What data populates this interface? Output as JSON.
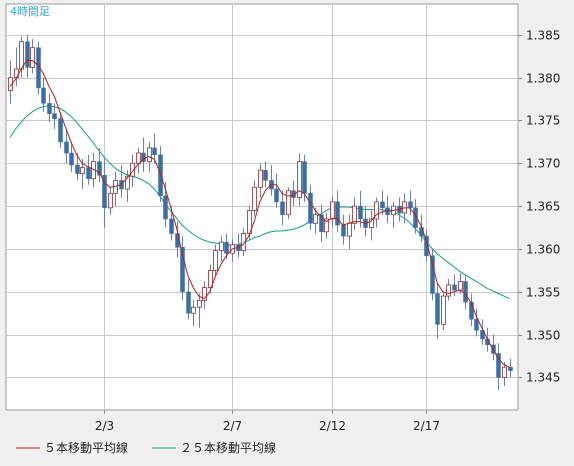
{
  "chart_data": {
    "type": "candlestick",
    "timeframe_label": "4時間足",
    "y_ticks": [
      1.385,
      1.38,
      1.375,
      1.37,
      1.365,
      1.36,
      1.355,
      1.35,
      1.345
    ],
    "y_tick_labels": [
      "1.385",
      "1.380",
      "1.375",
      "1.370",
      "1.365",
      "1.360",
      "1.355",
      "1.350",
      "1.345"
    ],
    "ylim": [
      1.3412,
      1.3886
    ],
    "x_ticks": [
      {
        "index": 17,
        "label": "2/3"
      },
      {
        "index": 40,
        "label": "2/7"
      },
      {
        "index": 58,
        "label": "2/12"
      },
      {
        "index": 75,
        "label": "2/17"
      }
    ],
    "grid": true,
    "colors": {
      "up_body": "#ffffff",
      "down_body": "#3a6ea5",
      "wick": "#6e7fa8",
      "ma5": "#b02020",
      "ma25": "#10a080",
      "grid": "#c9c9c9",
      "background": "#ffffff",
      "label": "#30a8d8"
    },
    "candles": [
      [
        1.3785,
        1.382,
        1.377,
        1.38
      ],
      [
        1.38,
        1.3835,
        1.379,
        1.381
      ],
      [
        1.381,
        1.3848,
        1.38,
        1.3842
      ],
      [
        1.3842,
        1.385,
        1.38,
        1.3812
      ],
      [
        1.3812,
        1.3845,
        1.3805,
        1.3835
      ],
      [
        1.3835,
        1.3842,
        1.378,
        1.3788
      ],
      [
        1.3788,
        1.38,
        1.376,
        1.377
      ],
      [
        1.377,
        1.3782,
        1.3748,
        1.3758
      ],
      [
        1.3758,
        1.377,
        1.374,
        1.3752
      ],
      [
        1.3752,
        1.376,
        1.3718,
        1.3725
      ],
      [
        1.3725,
        1.374,
        1.37,
        1.3712
      ],
      [
        1.3712,
        1.3725,
        1.369,
        1.3698
      ],
      [
        1.3698,
        1.3712,
        1.368,
        1.3688
      ],
      [
        1.3688,
        1.3705,
        1.367,
        1.3695
      ],
      [
        1.3695,
        1.371,
        1.3675,
        1.3682
      ],
      [
        1.3682,
        1.3712,
        1.3672,
        1.3702
      ],
      [
        1.3702,
        1.3718,
        1.3678,
        1.3686
      ],
      [
        1.3686,
        1.3705,
        1.3625,
        1.3648
      ],
      [
        1.3648,
        1.3672,
        1.364,
        1.3665
      ],
      [
        1.3665,
        1.369,
        1.365,
        1.368
      ],
      [
        1.368,
        1.3698,
        1.366,
        1.367
      ],
      [
        1.367,
        1.3692,
        1.3655,
        1.3685
      ],
      [
        1.3685,
        1.371,
        1.3672,
        1.37
      ],
      [
        1.37,
        1.3718,
        1.3688,
        1.3712
      ],
      [
        1.3712,
        1.373,
        1.369,
        1.3702
      ],
      [
        1.3702,
        1.3725,
        1.369,
        1.3718
      ],
      [
        1.3718,
        1.3735,
        1.37,
        1.371
      ],
      [
        1.371,
        1.372,
        1.3655,
        1.3662
      ],
      [
        1.3662,
        1.3678,
        1.3625,
        1.3635
      ],
      [
        1.3635,
        1.365,
        1.361,
        1.3618
      ],
      [
        1.3618,
        1.3632,
        1.359,
        1.3602
      ],
      [
        1.3602,
        1.3615,
        1.354,
        1.355
      ],
      [
        1.355,
        1.3565,
        1.3518,
        1.3525
      ],
      [
        1.3525,
        1.354,
        1.351,
        1.3532
      ],
      [
        1.3532,
        1.3548,
        1.3508,
        1.354
      ],
      [
        1.354,
        1.3562,
        1.353,
        1.3555
      ],
      [
        1.3555,
        1.3582,
        1.3548,
        1.3575
      ],
      [
        1.3575,
        1.3605,
        1.3568,
        1.3598
      ],
      [
        1.3598,
        1.3615,
        1.3585,
        1.3608
      ],
      [
        1.3608,
        1.3618,
        1.3588,
        1.3595
      ],
      [
        1.3595,
        1.3612,
        1.3585,
        1.3605
      ],
      [
        1.3605,
        1.3618,
        1.359,
        1.3598
      ],
      [
        1.3598,
        1.3625,
        1.3592,
        1.3618
      ],
      [
        1.3618,
        1.365,
        1.361,
        1.3645
      ],
      [
        1.3645,
        1.368,
        1.3638,
        1.3672
      ],
      [
        1.3672,
        1.37,
        1.366,
        1.3692
      ],
      [
        1.3692,
        1.3702,
        1.3672,
        1.368
      ],
      [
        1.368,
        1.3698,
        1.3662,
        1.367
      ],
      [
        1.367,
        1.3688,
        1.3648,
        1.3655
      ],
      [
        1.3655,
        1.3668,
        1.3628,
        1.364
      ],
      [
        1.364,
        1.3672,
        1.3635,
        1.3668
      ],
      [
        1.3668,
        1.368,
        1.365,
        1.366
      ],
      [
        1.366,
        1.3712,
        1.365,
        1.3702
      ],
      [
        1.3702,
        1.371,
        1.3655,
        1.3665
      ],
      [
        1.3665,
        1.3675,
        1.3622,
        1.363
      ],
      [
        1.363,
        1.3648,
        1.3618,
        1.364
      ],
      [
        1.364,
        1.3652,
        1.3608,
        1.362
      ],
      [
        1.362,
        1.3642,
        1.3612,
        1.3635
      ],
      [
        1.3635,
        1.3662,
        1.3625,
        1.3655
      ],
      [
        1.3655,
        1.3668,
        1.362,
        1.3628
      ],
      [
        1.3628,
        1.364,
        1.3605,
        1.3615
      ],
      [
        1.3615,
        1.364,
        1.36,
        1.363
      ],
      [
        1.363,
        1.366,
        1.3622,
        1.365
      ],
      [
        1.365,
        1.3668,
        1.3625,
        1.3635
      ],
      [
        1.3635,
        1.365,
        1.3615,
        1.3625
      ],
      [
        1.3625,
        1.3645,
        1.361,
        1.3635
      ],
      [
        1.3635,
        1.366,
        1.3625,
        1.3655
      ],
      [
        1.3655,
        1.3668,
        1.364,
        1.3648
      ],
      [
        1.3648,
        1.3662,
        1.363,
        1.364
      ],
      [
        1.364,
        1.3655,
        1.3625,
        1.365
      ],
      [
        1.365,
        1.366,
        1.3632,
        1.3642
      ],
      [
        1.3642,
        1.3665,
        1.363,
        1.3655
      ],
      [
        1.3655,
        1.3668,
        1.364,
        1.3648
      ],
      [
        1.3648,
        1.3658,
        1.3618,
        1.3625
      ],
      [
        1.3625,
        1.364,
        1.3608,
        1.3615
      ],
      [
        1.3615,
        1.3622,
        1.3585,
        1.3592
      ],
      [
        1.3592,
        1.36,
        1.354,
        1.3548
      ],
      [
        1.3548,
        1.356,
        1.3495,
        1.3512
      ],
      [
        1.3512,
        1.355,
        1.3505,
        1.3545
      ],
      [
        1.3545,
        1.3565,
        1.354,
        1.3558
      ],
      [
        1.3558,
        1.357,
        1.3545,
        1.3552
      ],
      [
        1.3552,
        1.3572,
        1.3548,
        1.3562
      ],
      [
        1.3562,
        1.357,
        1.353,
        1.3538
      ],
      [
        1.3538,
        1.3548,
        1.351,
        1.3518
      ],
      [
        1.3518,
        1.353,
        1.3498,
        1.3505
      ],
      [
        1.3505,
        1.3518,
        1.3488,
        1.3495
      ],
      [
        1.3495,
        1.3508,
        1.348,
        1.3488
      ],
      [
        1.3488,
        1.35,
        1.347,
        1.3478
      ],
      [
        1.3478,
        1.349,
        1.3435,
        1.345
      ],
      [
        1.345,
        1.3468,
        1.344,
        1.3462
      ],
      [
        1.3462,
        1.3472,
        1.345,
        1.3458
      ]
    ],
    "ma5": [
      1.379,
      1.3798,
      1.381,
      1.382,
      1.382,
      1.3815,
      1.3805,
      1.379,
      1.3778,
      1.376,
      1.3742,
      1.3725,
      1.371,
      1.37,
      1.3696,
      1.3693,
      1.369,
      1.3678,
      1.3672,
      1.3673,
      1.3675,
      1.3682,
      1.369,
      1.3698,
      1.3705,
      1.3708,
      1.3705,
      1.369,
      1.367,
      1.3648,
      1.3625,
      1.3596,
      1.357,
      1.3555,
      1.3545,
      1.3542,
      1.355,
      1.3568,
      1.3582,
      1.3592,
      1.36,
      1.3602,
      1.3605,
      1.3615,
      1.3632,
      1.3655,
      1.3668,
      1.3675,
      1.3675,
      1.3665,
      1.3662,
      1.3662,
      1.3668,
      1.3665,
      1.3655,
      1.3645,
      1.3638,
      1.3632,
      1.3636,
      1.3635,
      1.3628,
      1.363,
      1.3632,
      1.3632,
      1.363,
      1.3632,
      1.364,
      1.3643,
      1.3645,
      1.3645,
      1.3646,
      1.3648,
      1.3648,
      1.364,
      1.3628,
      1.361,
      1.3585,
      1.356,
      1.355,
      1.3548,
      1.355,
      1.3552,
      1.3548,
      1.3538,
      1.3522,
      1.3508,
      1.3495,
      1.3483,
      1.3472,
      1.3465,
      1.3462
    ],
    "ma25": [
      1.373,
      1.374,
      1.3748,
      1.3755,
      1.376,
      1.3764,
      1.3766,
      1.3767,
      1.3766,
      1.3764,
      1.376,
      1.3755,
      1.3748,
      1.374,
      1.3732,
      1.3724,
      1.3715,
      1.3707,
      1.37,
      1.3694,
      1.369,
      1.3687,
      1.3685,
      1.3683,
      1.368,
      1.3676,
      1.367,
      1.3662,
      1.3652,
      1.3644,
      1.3636,
      1.3628,
      1.3622,
      1.3617,
      1.3613,
      1.361,
      1.3608,
      1.3607,
      1.3606,
      1.3605,
      1.3604,
      1.3605,
      1.3607,
      1.361,
      1.3613,
      1.3615,
      1.3618,
      1.362,
      1.3621,
      1.3621,
      1.3622,
      1.3623,
      1.3625,
      1.3628,
      1.3632,
      1.3637,
      1.3641,
      1.3645,
      1.3648,
      1.3649,
      1.3649,
      1.3649,
      1.3648,
      1.3647,
      1.3646,
      1.3646,
      1.3646,
      1.3646,
      1.3645,
      1.3643,
      1.364,
      1.3636,
      1.3631,
      1.3624,
      1.3617,
      1.3608,
      1.3601,
      1.3594,
      1.3589,
      1.3584,
      1.3579,
      1.3574,
      1.357,
      1.3566,
      1.3562,
      1.3558,
      1.3554,
      1.3551,
      1.3548,
      1.3545,
      1.3542
    ],
    "legend": [
      {
        "name": "５本移動平均線",
        "color": "#b02020"
      },
      {
        "name": "２５本移動平均線",
        "color": "#10a080"
      }
    ]
  }
}
